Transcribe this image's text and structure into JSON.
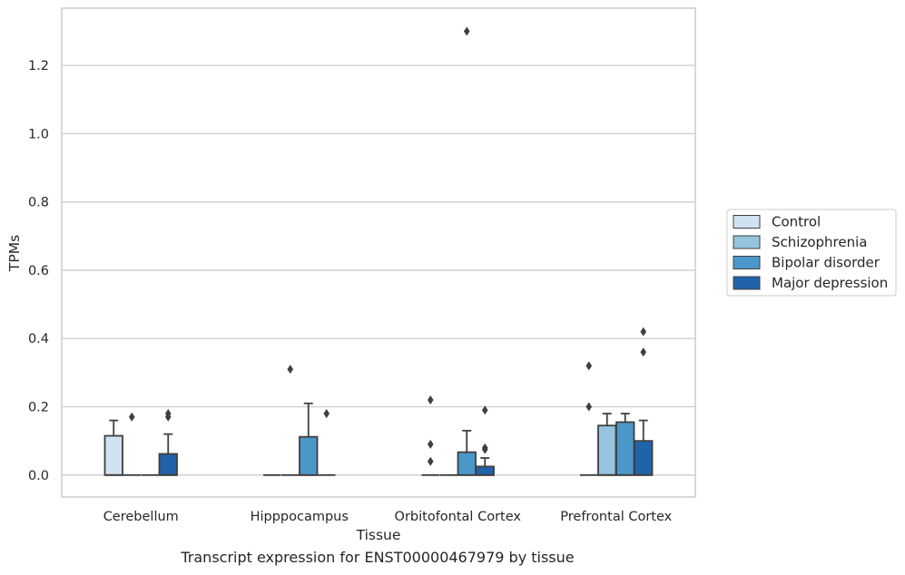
{
  "chart_data": {
    "type": "box",
    "xlabel": "Tissue",
    "ylabel": "TPMs",
    "ylim": [
      -0.065,
      1.365
    ],
    "yticks": [
      0.0,
      0.2,
      0.4,
      0.6,
      0.8,
      1.0,
      1.2
    ],
    "ytick_labels": [
      "0.0",
      "0.2",
      "0.4",
      "0.6",
      "0.8",
      "1.0",
      "1.2"
    ],
    "grid": "horizontal",
    "legend_position": "right",
    "categories": [
      "Cerebellum",
      "Hipppocampus",
      "Orbitofontal Cortex",
      "Prefrontal Cortex"
    ],
    "series": [
      {
        "name": "Control",
        "color": "#d0e1f2",
        "boxes": [
          {
            "q1": 0.0,
            "median": 0.0,
            "q3": 0.115,
            "whisker_low": 0.0,
            "whisker_high": 0.16,
            "outliers": []
          },
          {
            "q1": 0.0,
            "median": 0.0,
            "q3": 0.0,
            "whisker_low": 0.0,
            "whisker_high": 0.0,
            "outliers": []
          },
          {
            "q1": 0.0,
            "median": 0.0,
            "q3": 0.0,
            "whisker_low": 0.0,
            "whisker_high": 0.0,
            "outliers": [
              0.04,
              0.09,
              0.22
            ]
          },
          {
            "q1": 0.0,
            "median": 0.0,
            "q3": 0.0,
            "whisker_low": 0.0,
            "whisker_high": 0.0,
            "outliers": [
              0.2,
              0.32
            ]
          }
        ]
      },
      {
        "name": "Schizophrenia",
        "color": "#94c4df",
        "boxes": [
          {
            "q1": 0.0,
            "median": 0.0,
            "q3": 0.0,
            "whisker_low": 0.0,
            "whisker_high": 0.0,
            "outliers": [
              0.17
            ]
          },
          {
            "q1": 0.0,
            "median": 0.0,
            "q3": 0.0,
            "whisker_low": 0.0,
            "whisker_high": 0.0,
            "outliers": [
              0.31
            ]
          },
          {
            "q1": 0.0,
            "median": 0.0,
            "q3": 0.0,
            "whisker_low": 0.0,
            "whisker_high": 0.0,
            "outliers": []
          },
          {
            "q1": 0.0,
            "median": 0.0,
            "q3": 0.145,
            "whisker_low": 0.0,
            "whisker_high": 0.18,
            "outliers": []
          }
        ]
      },
      {
        "name": "Bipolar disorder",
        "color": "#4a98c9",
        "boxes": [
          {
            "q1": 0.0,
            "median": 0.0,
            "q3": 0.0,
            "whisker_low": 0.0,
            "whisker_high": 0.0,
            "outliers": []
          },
          {
            "q1": 0.0,
            "median": 0.0,
            "q3": 0.112,
            "whisker_low": 0.0,
            "whisker_high": 0.21,
            "outliers": []
          },
          {
            "q1": 0.0,
            "median": 0.0,
            "q3": 0.067,
            "whisker_low": 0.0,
            "whisker_high": 0.13,
            "outliers": [
              1.3
            ]
          },
          {
            "q1": 0.0,
            "median": 0.0,
            "q3": 0.155,
            "whisker_low": 0.0,
            "whisker_high": 0.18,
            "outliers": []
          }
        ]
      },
      {
        "name": "Major depression",
        "color": "#2163aa",
        "boxes": [
          {
            "q1": 0.0,
            "median": 0.0,
            "q3": 0.062,
            "whisker_low": 0.0,
            "whisker_high": 0.12,
            "outliers": [
              0.17,
              0.18
            ]
          },
          {
            "q1": 0.0,
            "median": 0.0,
            "q3": 0.0,
            "whisker_low": 0.0,
            "whisker_high": 0.0,
            "outliers": [
              0.18
            ]
          },
          {
            "q1": 0.0,
            "median": 0.0,
            "q3": 0.025,
            "whisker_low": 0.0,
            "whisker_high": 0.05,
            "outliers": [
              0.075,
              0.08,
              0.19
            ]
          },
          {
            "q1": 0.0,
            "median": 0.0,
            "q3": 0.1,
            "whisker_low": 0.0,
            "whisker_high": 0.16,
            "outliers": [
              0.36,
              0.42
            ]
          }
        ]
      }
    ]
  },
  "caption": "Transcript expression for ENST00000467979 by tissue",
  "colors": {
    "grid": "#cccccc",
    "frame": "#cccccc",
    "line": "#3f3f3f"
  }
}
